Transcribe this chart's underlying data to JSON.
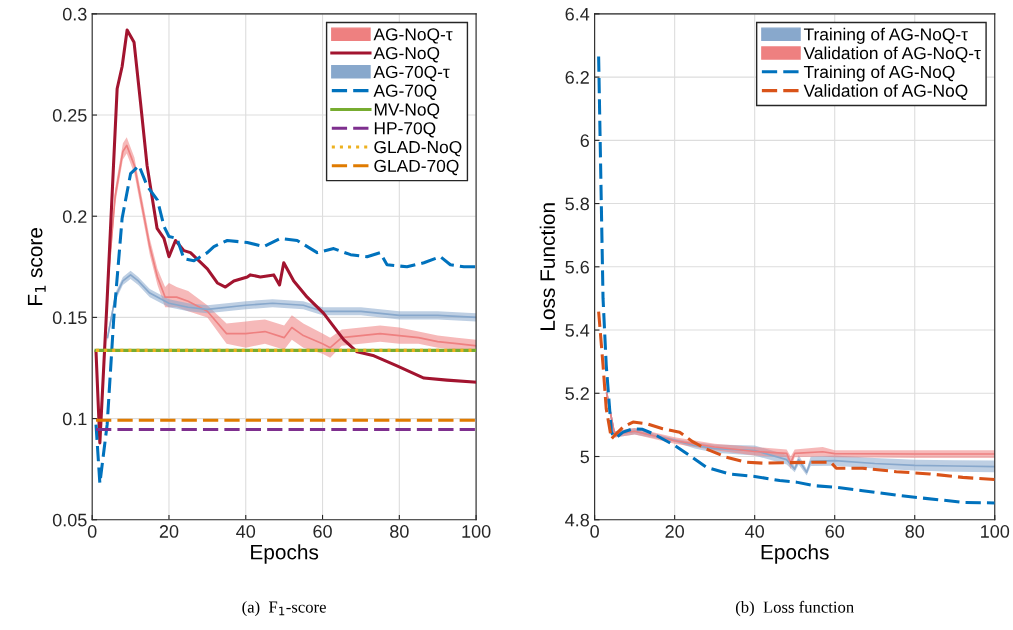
{
  "chart_data": [
    {
      "type": "line",
      "title": "(a)  F$_{1}$-score",
      "xlabel": "Epochs",
      "ylabel": "F$_{1}$ score",
      "xlim": [
        0,
        100
      ],
      "ylim": [
        0.05,
        0.3
      ],
      "xticks": [
        0,
        20,
        40,
        60,
        80,
        100
      ],
      "yticks": [
        0.05,
        0.1,
        0.15,
        0.2,
        0.25,
        0.3
      ],
      "grid": true,
      "legend": "top right",
      "marker": "none",
      "series": [
        {
          "name": "AG-NoQ-τ",
          "color": "#ee8080",
          "x": [
            4,
            6,
            8,
            9,
            11,
            13,
            15,
            17,
            19,
            20,
            22,
            25,
            30,
            35,
            40,
            45,
            50,
            52,
            55,
            60,
            62,
            65,
            70,
            75,
            80,
            85,
            90,
            95,
            100
          ],
          "values": [
            0.165,
            0.21,
            0.232,
            0.235,
            0.225,
            0.205,
            0.185,
            0.17,
            0.16,
            0.16,
            0.16,
            0.158,
            0.153,
            0.142,
            0.142,
            0.143,
            0.14,
            0.145,
            0.141,
            0.137,
            0.135,
            0.14,
            0.141,
            0.142,
            0.141,
            0.14,
            0.138,
            0.137,
            0.136
          ],
          "lower": [
            0.162,
            0.206,
            0.228,
            0.231,
            0.221,
            0.201,
            0.181,
            0.166,
            0.155,
            0.155,
            0.155,
            0.153,
            0.15,
            0.137,
            0.135,
            0.137,
            0.134,
            0.139,
            0.135,
            0.132,
            0.13,
            0.136,
            0.137,
            0.138,
            0.137,
            0.137,
            0.135,
            0.134,
            0.133
          ],
          "upper": [
            0.168,
            0.214,
            0.236,
            0.239,
            0.229,
            0.209,
            0.189,
            0.174,
            0.165,
            0.167,
            0.165,
            0.163,
            0.156,
            0.147,
            0.148,
            0.149,
            0.146,
            0.151,
            0.147,
            0.142,
            0.14,
            0.144,
            0.145,
            0.146,
            0.145,
            0.143,
            0.141,
            0.14,
            0.139
          ]
        },
        {
          "name": "AG-NoQ",
          "color": "#a2142f",
          "line_style": "solid",
          "x": [
            1,
            2,
            3.9,
            6.5,
            7.8,
            9.1,
            10.9,
            12.6,
            14.3,
            16.9,
            18.7,
            20,
            21.7,
            23.9,
            25.6,
            30,
            32.6,
            34.7,
            36.9,
            40.4,
            41.2,
            43.8,
            47.3,
            48.8,
            49.9,
            52.5,
            56,
            60.3,
            65.5,
            69,
            73.4,
            79.4,
            86.4,
            92.4,
            100
          ],
          "values": [
            0.133,
            0.088,
            0.159,
            0.263,
            0.274,
            0.292,
            0.286,
            0.256,
            0.225,
            0.194,
            0.189,
            0.18,
            0.188,
            0.183,
            0.182,
            0.174,
            0.167,
            0.165,
            0.168,
            0.17,
            0.171,
            0.17,
            0.171,
            0.166,
            0.177,
            0.168,
            0.16,
            0.152,
            0.139,
            0.133,
            0.131,
            0.126,
            0.12,
            0.119,
            0.118
          ]
        },
        {
          "name": "AG-70Q-τ",
          "color": "#88a8cc",
          "x": [
            4,
            6,
            8,
            10,
            12,
            15,
            20,
            25,
            30,
            40,
            47,
            55,
            60,
            70,
            80,
            90,
            100
          ],
          "values": [
            0.14,
            0.16,
            0.168,
            0.171,
            0.168,
            0.162,
            0.157,
            0.155,
            0.154,
            0.156,
            0.157,
            0.156,
            0.153,
            0.153,
            0.151,
            0.151,
            0.15
          ],
          "lower": [
            0.138,
            0.158,
            0.166,
            0.169,
            0.166,
            0.16,
            0.155,
            0.153,
            0.152,
            0.154,
            0.155,
            0.154,
            0.151,
            0.151,
            0.149,
            0.149,
            0.148
          ],
          "upper": [
            0.142,
            0.162,
            0.17,
            0.173,
            0.17,
            0.164,
            0.159,
            0.157,
            0.156,
            0.158,
            0.159,
            0.158,
            0.155,
            0.155,
            0.153,
            0.153,
            0.152
          ]
        },
        {
          "name": "AG-70Q",
          "color": "#0072bd",
          "line_style": "dashed",
          "x": [
            1,
            2,
            3.9,
            5.6,
            7.8,
            10,
            12.2,
            14.3,
            17,
            18.7,
            20,
            22.1,
            23.9,
            26.5,
            30,
            31.7,
            35.2,
            40.4,
            44.7,
            49,
            53.4,
            58.6,
            62.9,
            67.3,
            71.6,
            75,
            76.8,
            82,
            86.4,
            90.7,
            93.3,
            96.8,
            100
          ],
          "values": [
            0.097,
            0.068,
            0.097,
            0.149,
            0.199,
            0.221,
            0.225,
            0.215,
            0.208,
            0.195,
            0.19,
            0.189,
            0.179,
            0.178,
            0.182,
            0.185,
            0.188,
            0.187,
            0.185,
            0.189,
            0.188,
            0.182,
            0.184,
            0.181,
            0.18,
            0.182,
            0.176,
            0.175,
            0.177,
            0.18,
            0.176,
            0.175,
            0.175
          ]
        },
        {
          "name": "MV-NoQ",
          "color": "#77ac30",
          "line_style": "solid",
          "x": [
            1,
            100
          ],
          "values": [
            0.1337,
            0.1337
          ]
        },
        {
          "name": "HP-70Q",
          "color": "#7e2f8e",
          "line_style": "dashed",
          "x": [
            1,
            100
          ],
          "values": [
            0.0946,
            0.0946
          ]
        },
        {
          "name": "GLAD-NoQ",
          "color": "#edb120",
          "line_style": "dotted",
          "x": [
            1,
            100
          ],
          "values": [
            0.1337,
            0.1337
          ]
        },
        {
          "name": "GLAD-70Q",
          "color": "#e07b00",
          "line_style": "dashed",
          "x": [
            1,
            100
          ],
          "values": [
            0.0992,
            0.0992
          ]
        }
      ]
    },
    {
      "type": "line",
      "title": "(b)  Loss function",
      "xlabel": "Epochs",
      "ylabel": "Loss Function",
      "xlim": [
        0,
        100
      ],
      "ylim": [
        4.8,
        6.4
      ],
      "xticks": [
        0,
        20,
        40,
        60,
        80,
        100
      ],
      "yticks": [
        4.8,
        5,
        5.2,
        5.4,
        5.6,
        5.8,
        6,
        6.2,
        6.4
      ],
      "grid": true,
      "legend": "top right",
      "marker": "none",
      "series": [
        {
          "name": "Training of AG-NoQ-τ",
          "color": "#88a8cc",
          "x": [
            3,
            5,
            10,
            20,
            25,
            30,
            40,
            48,
            50,
            51,
            53,
            54,
            60,
            70,
            80,
            90,
            100
          ],
          "values": [
            5.2,
            5.07,
            5.08,
            5.051,
            5.035,
            5.025,
            5.019,
            4.99,
            4.96,
            4.99,
            4.95,
            4.985,
            4.987,
            4.978,
            4.972,
            4.97,
            4.968
          ],
          "lower": [
            5.18,
            5.06,
            5.07,
            5.046,
            5.025,
            5.012,
            5.003,
            4.975,
            4.95,
            4.975,
            4.94,
            4.97,
            4.971,
            4.962,
            4.956,
            4.952,
            4.95
          ],
          "upper": [
            5.22,
            5.08,
            5.09,
            5.056,
            5.045,
            5.038,
            5.035,
            5.005,
            4.97,
            5.005,
            4.96,
            5.0,
            5.003,
            4.995,
            4.99,
            4.988,
            4.987
          ]
        },
        {
          "name": "Validation of AG-NoQ-τ",
          "color": "#ee8080",
          "x": [
            3,
            5,
            10,
            20,
            30,
            40,
            48,
            49,
            50,
            57,
            60,
            80,
            100
          ],
          "values": [
            5.2,
            5.07,
            5.08,
            5.05,
            5.03,
            5.016,
            5.01,
            4.98,
            5.01,
            5.015,
            5.009,
            5.008,
            5.008
          ],
          "lower": [
            5.18,
            5.06,
            5.07,
            5.04,
            5.02,
            5.003,
            4.998,
            4.96,
            4.998,
            5.0,
            4.998,
            4.995,
            4.995
          ],
          "upper": [
            5.22,
            5.08,
            5.09,
            5.061,
            5.04,
            5.03,
            5.022,
            5.0,
            5.022,
            5.03,
            5.02,
            5.02,
            5.02
          ]
        },
        {
          "name": "Training of AG-NoQ",
          "color": "#0072bd",
          "line_style": "dashed",
          "x": [
            1,
            2.1,
            2.9,
            4.2,
            4.6,
            5.4,
            7.1,
            9.6,
            12,
            14.6,
            20,
            23.75,
            27.9,
            33.75,
            40,
            46.25,
            50.4,
            54.6,
            60,
            67,
            75.4,
            80,
            87,
            92,
            100
          ],
          "values": [
            6.265,
            5.5,
            5.289,
            5.077,
            5.067,
            5.06,
            5.077,
            5.088,
            5.086,
            5.072,
            5.035,
            5.003,
            4.966,
            4.945,
            4.937,
            4.924,
            4.919,
            4.908,
            4.903,
            4.892,
            4.878,
            4.871,
            4.862,
            4.855,
            4.853
          ]
        },
        {
          "name": "Validation of AG-NoQ",
          "color": "#d95319",
          "line_style": "dashed",
          "x": [
            1,
            2.1,
            2.9,
            4.2,
            5,
            7.1,
            9.6,
            12.9,
            17,
            21.25,
            24.6,
            27.9,
            32.9,
            37.9,
            42,
            54.6,
            59,
            60.4,
            67,
            75.4,
            83.75,
            92,
            100
          ],
          "values": [
            5.458,
            5.289,
            5.151,
            5.056,
            5.067,
            5.093,
            5.109,
            5.104,
            5.088,
            5.077,
            5.046,
            5.024,
            4.998,
            4.982,
            4.979,
            4.982,
            4.982,
            4.963,
            4.963,
            4.952,
            4.945,
            4.934,
            4.927
          ]
        }
      ]
    }
  ]
}
